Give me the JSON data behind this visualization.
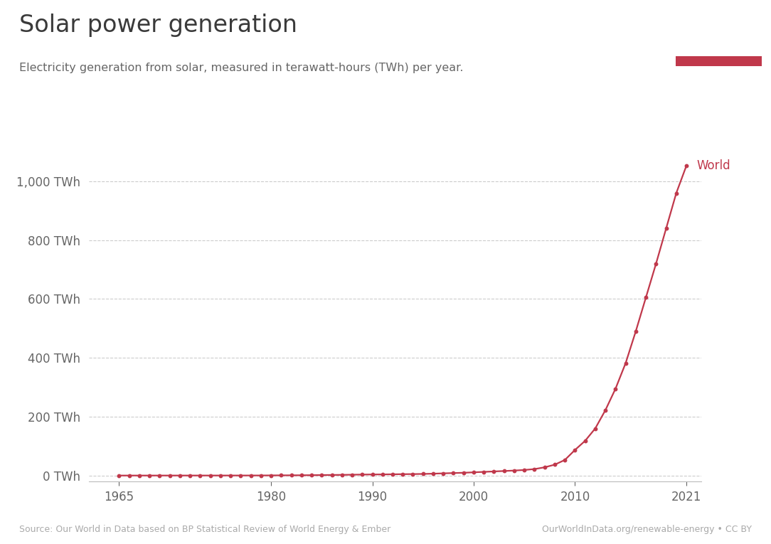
{
  "title": "Solar power generation",
  "subtitle": "Electricity generation from solar, measured in terawatt-hours (TWh) per year.",
  "source_left": "Source: Our World in Data based on BP Statistical Review of World Energy & Ember",
  "source_right": "OurWorldInData.org/renewable-energy • CC BY",
  "line_color": "#c0384b",
  "background_color": "#ffffff",
  "title_color": "#3a3a3a",
  "subtitle_color": "#666666",
  "grid_color": "#cccccc",
  "ylabel_color": "#666666",
  "xlabel_color": "#666666",
  "bottom_spine_color": "#bbbbbb",
  "world_label_color": "#c0384b",
  "logo_bg_color": "#1d3557",
  "logo_red_color": "#c0384b",
  "years": [
    1965,
    1966,
    1967,
    1968,
    1969,
    1970,
    1971,
    1972,
    1973,
    1974,
    1975,
    1976,
    1977,
    1978,
    1979,
    1980,
    1981,
    1982,
    1983,
    1984,
    1985,
    1986,
    1987,
    1988,
    1989,
    1990,
    1991,
    1992,
    1993,
    1994,
    1995,
    1996,
    1997,
    1998,
    1999,
    2000,
    2001,
    2002,
    2003,
    2004,
    2005,
    2006,
    2007,
    2008,
    2009,
    2010,
    2011,
    2012,
    2013,
    2014,
    2015,
    2016,
    2017,
    2018,
    2019,
    2020,
    2021
  ],
  "values": [
    0.08,
    0.09,
    0.1,
    0.11,
    0.12,
    0.13,
    0.14,
    0.15,
    0.16,
    0.17,
    0.19,
    0.21,
    0.24,
    0.27,
    0.31,
    0.55,
    0.7,
    0.85,
    1.0,
    1.3,
    1.7,
    2.0,
    2.4,
    2.9,
    3.4,
    3.7,
    3.9,
    4.3,
    4.7,
    5.0,
    5.5,
    6.4,
    7.5,
    8.5,
    9.5,
    11.0,
    12.5,
    14.0,
    15.5,
    17.0,
    19.0,
    22.0,
    28.0,
    37.0,
    53.0,
    87.0,
    118.0,
    160.0,
    222.0,
    295.0,
    382.0,
    490.0,
    605.0,
    720.0,
    840.0,
    960.0,
    1053.0
  ],
  "yticks": [
    0,
    200,
    400,
    600,
    800,
    1000
  ],
  "ytick_labels": [
    "0 TWh",
    "200 TWh",
    "400 TWh",
    "600 TWh",
    "800 TWh",
    "1,000 TWh"
  ],
  "xticks": [
    1965,
    1980,
    1990,
    2000,
    2010,
    2021
  ],
  "xlim": [
    1962,
    2022.5
  ],
  "ylim": [
    -20,
    1080
  ]
}
